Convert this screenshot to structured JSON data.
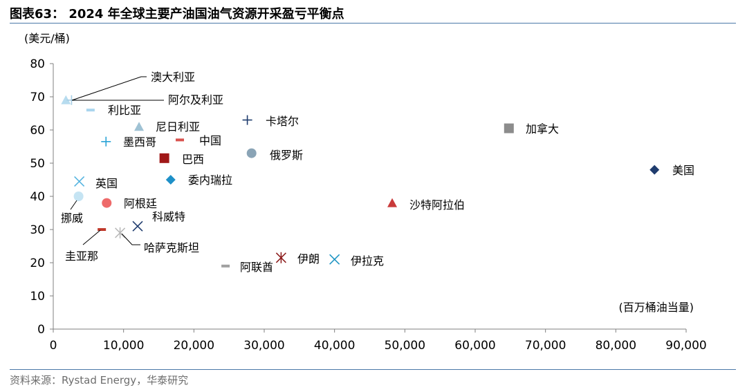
{
  "title": "图表63： 2024 年全球主要产油国油气资源开采盈亏平衡点",
  "source": "资料来源：Rystad Energy，华泰研究",
  "chart_data": {
    "type": "scatter",
    "title": "图表63： 2024 年全球主要产油国油气资源开采盈亏平衡点",
    "ylabel": "(美元/桶)",
    "xlabel": "(百万桶油当量)",
    "xlim": [
      0,
      90000
    ],
    "ylim": [
      0,
      80
    ],
    "xticks": [
      0,
      10000,
      20000,
      30000,
      40000,
      50000,
      60000,
      70000,
      80000,
      90000
    ],
    "xtick_labels": [
      "0",
      "10,000",
      "20,000",
      "30,000",
      "40,000",
      "50,000",
      "60,000",
      "70,000",
      "80,000",
      "90,000"
    ],
    "yticks": [
      0,
      10,
      20,
      30,
      40,
      50,
      60,
      70,
      80
    ],
    "ytick_labels": [
      "0",
      "10",
      "20",
      "30",
      "40",
      "50",
      "60",
      "70",
      "80"
    ],
    "grid": false,
    "series": [
      {
        "name": "澳大利亚",
        "x": 1800,
        "y": 69,
        "marker": "triangle",
        "color": "#b7dcef"
      },
      {
        "name": "阿尔及利亚",
        "x": 2600,
        "y": 69,
        "marker": "plus",
        "color": "#a6cde4"
      },
      {
        "name": "利比亚",
        "x": 5300,
        "y": 66,
        "marker": "dash",
        "color": "#a9d5ee"
      },
      {
        "name": "尼日利亚",
        "x": 12200,
        "y": 61,
        "marker": "triangle",
        "color": "#9fc2d4"
      },
      {
        "name": "卡塔尔",
        "x": 27600,
        "y": 63,
        "marker": "plus",
        "color": "#1f3c6e"
      },
      {
        "name": "加拿大",
        "x": 64800,
        "y": 60.5,
        "marker": "square",
        "color": "#8c8c8c"
      },
      {
        "name": "墨西哥",
        "x": 7500,
        "y": 56.5,
        "marker": "plus",
        "color": "#2aa3d6"
      },
      {
        "name": "中国",
        "x": 18000,
        "y": 57,
        "marker": "dash",
        "color": "#d9534f"
      },
      {
        "name": "俄罗斯",
        "x": 28200,
        "y": 53,
        "marker": "circle",
        "color": "#8aa4b6"
      },
      {
        "name": "巴西",
        "x": 15800,
        "y": 51.5,
        "marker": "square",
        "color": "#a01818"
      },
      {
        "name": "美国",
        "x": 85500,
        "y": 48,
        "marker": "diamond",
        "color": "#1f3c6e"
      },
      {
        "name": "委内瑞拉",
        "x": 16700,
        "y": 45,
        "marker": "diamond",
        "color": "#1e90c8"
      },
      {
        "name": "英国",
        "x": 3700,
        "y": 44.5,
        "marker": "x",
        "color": "#56b4e0"
      },
      {
        "name": "挪威",
        "x": 3600,
        "y": 40,
        "marker": "circle",
        "color": "#c5e4f3"
      },
      {
        "name": "阿根廷",
        "x": 7600,
        "y": 38,
        "marker": "circle",
        "color": "#ee6a6a"
      },
      {
        "name": "沙特阿拉伯",
        "x": 48200,
        "y": 38,
        "marker": "triangle",
        "color": "#c93a3a"
      },
      {
        "name": "科威特",
        "x": 12000,
        "y": 31,
        "marker": "x",
        "color": "#1f3c6e"
      },
      {
        "name": "圭亚那",
        "x": 6900,
        "y": 30,
        "marker": "dash",
        "color": "#c0392b"
      },
      {
        "name": "哈萨克斯坦",
        "x": 9500,
        "y": 29,
        "marker": "asterisk",
        "color": "#b8b8b8"
      },
      {
        "name": "伊朗",
        "x": 32400,
        "y": 21.5,
        "marker": "asterisk",
        "color": "#8b1a1a"
      },
      {
        "name": "伊拉克",
        "x": 40000,
        "y": 21,
        "marker": "x",
        "color": "#2196c4"
      },
      {
        "name": "阿联酋",
        "x": 24500,
        "y": 19,
        "marker": "dash",
        "color": "#a0a0a0"
      }
    ]
  }
}
